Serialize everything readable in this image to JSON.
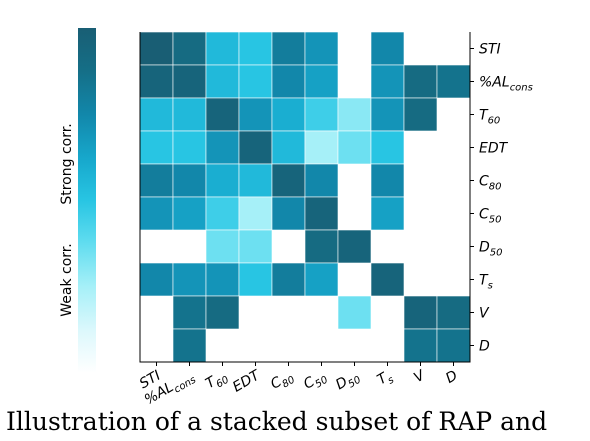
{
  "caption": "Illustration of a stacked subset of RAP and",
  "chart_data": {
    "type": "heatmap",
    "title": "",
    "xlabel": "",
    "ylabel": "",
    "rows": [
      "STI",
      "%AL_cons",
      "T_60",
      "EDT",
      "C_80",
      "C_50",
      "D_50",
      "T_s",
      "V",
      "D"
    ],
    "cols": [
      "STI",
      "%AL_cons",
      "T_60",
      "EDT",
      "C_80",
      "C_50",
      "D_50",
      "T_s",
      "V",
      "D"
    ],
    "x_tick_labels": [
      {
        "base": "STI",
        "sub": ""
      },
      {
        "base": "%AL",
        "sub": "cons"
      },
      {
        "base": "T",
        "sub": "60"
      },
      {
        "base": "EDT",
        "sub": ""
      },
      {
        "base": "C",
        "sub": "80"
      },
      {
        "base": "C",
        "sub": "50"
      },
      {
        "base": "D",
        "sub": "50"
      },
      {
        "base": "T",
        "sub": "s"
      },
      {
        "base": "V",
        "sub": ""
      },
      {
        "base": "D",
        "sub": ""
      }
    ],
    "y_tick_labels": [
      {
        "base": "STI",
        "sub": ""
      },
      {
        "base": "%AL",
        "sub": "cons"
      },
      {
        "base": "T",
        "sub": "60"
      },
      {
        "base": "EDT",
        "sub": ""
      },
      {
        "base": "C",
        "sub": "80"
      },
      {
        "base": "C",
        "sub": "50"
      },
      {
        "base": "D",
        "sub": "50"
      },
      {
        "base": "T",
        "sub": "s"
      },
      {
        "base": "V",
        "sub": ""
      },
      {
        "base": "D",
        "sub": ""
      }
    ],
    "values": [
      [
        1.0,
        0.9,
        0.55,
        0.5,
        0.8,
        0.7,
        null,
        0.75,
        null,
        null
      ],
      [
        0.95,
        0.95,
        0.55,
        0.5,
        0.75,
        0.65,
        null,
        0.7,
        0.9,
        0.85
      ],
      [
        0.55,
        0.55,
        0.95,
        0.7,
        0.6,
        0.45,
        0.3,
        0.7,
        0.9,
        null
      ],
      [
        0.5,
        0.5,
        0.7,
        0.95,
        0.55,
        0.25,
        0.35,
        0.5,
        null,
        null
      ],
      [
        0.8,
        0.75,
        0.6,
        0.55,
        0.95,
        0.75,
        null,
        0.75,
        null,
        null
      ],
      [
        0.7,
        0.65,
        0.45,
        0.25,
        0.75,
        0.95,
        null,
        0.65,
        null,
        null
      ],
      [
        null,
        null,
        0.35,
        0.35,
        null,
        0.9,
        0.95,
        null,
        null,
        null
      ],
      [
        0.75,
        0.7,
        0.7,
        0.5,
        0.8,
        0.65,
        null,
        0.95,
        null,
        null
      ],
      [
        null,
        0.85,
        0.9,
        null,
        null,
        null,
        0.35,
        null,
        0.95,
        0.9
      ],
      [
        null,
        0.85,
        null,
        null,
        null,
        null,
        null,
        null,
        0.85,
        0.85
      ]
    ],
    "colorbar": {
      "top_label": "Strong corr.",
      "bottom_label": "Weak corr.",
      "colors": [
        "#ffffff",
        "#ddf8fc",
        "#a6f0f8",
        "#5fdcef",
        "#28c5e3",
        "#17a8cc",
        "#1287aa",
        "#156e86",
        "#195e74"
      ]
    },
    "grid": false,
    "legend": "colorbar-left"
  }
}
